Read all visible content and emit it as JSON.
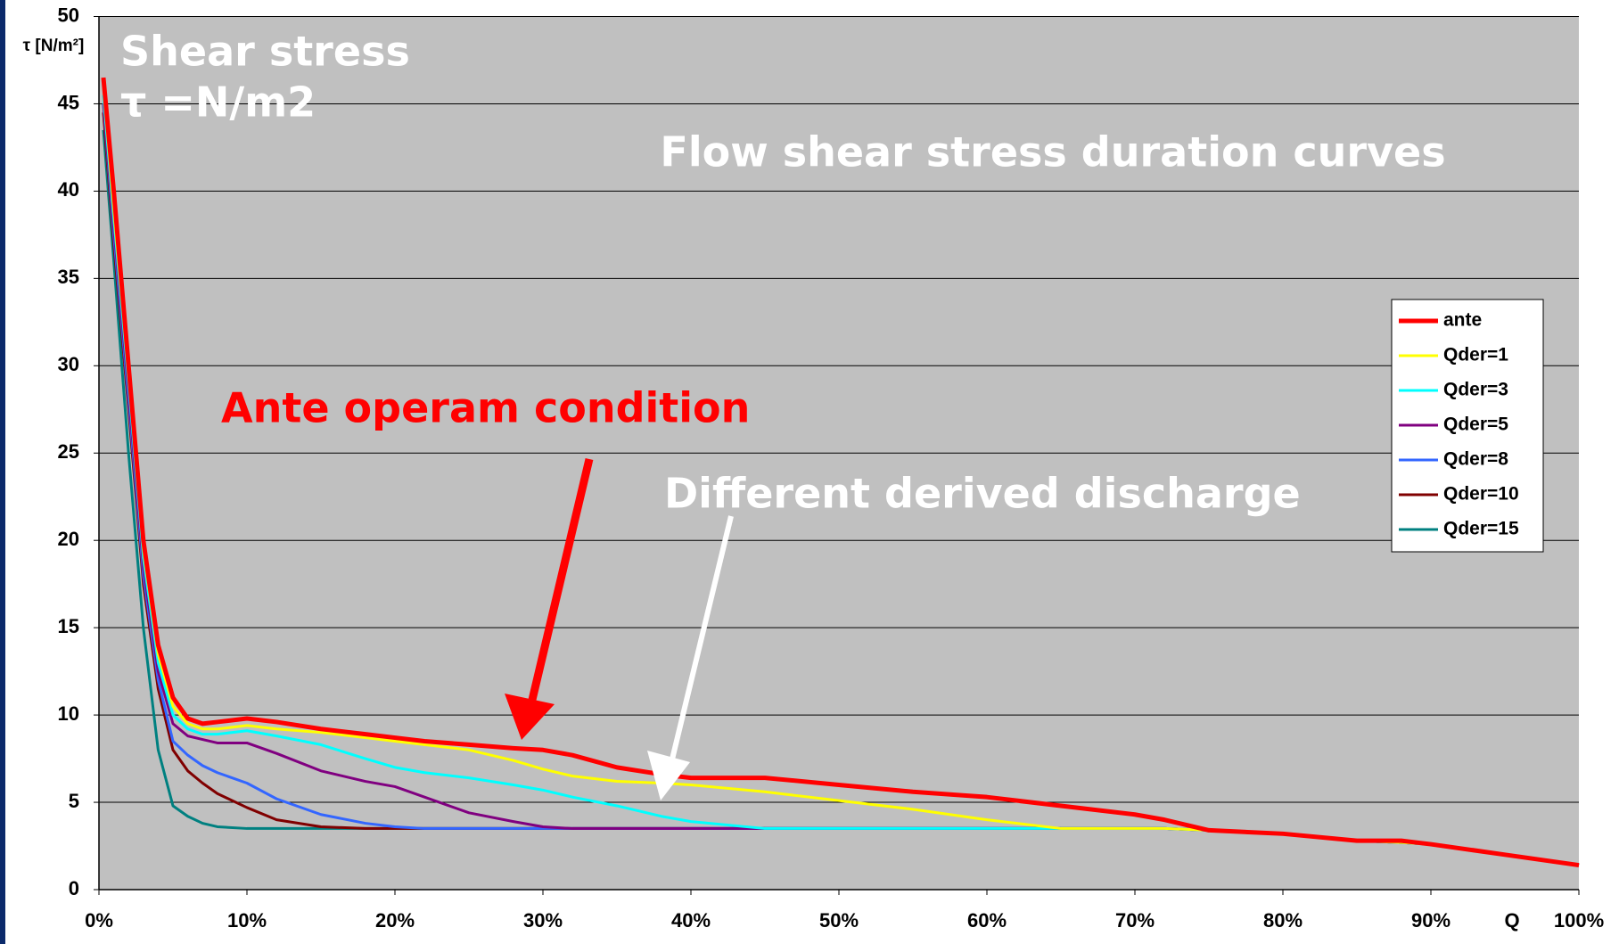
{
  "chart_data": {
    "type": "line",
    "title": "Flow shear stress duration curves",
    "y_label": "τ [N/m²]",
    "x_label": "Q",
    "annotations": [
      "Shear stress",
      "τ =N/m2",
      "Ante operam condition",
      "Different derived discharge"
    ],
    "x": [
      0.3,
      1,
      2,
      3,
      4,
      5,
      6,
      7,
      8,
      10,
      12,
      15,
      18,
      20,
      22,
      25,
      28,
      30,
      32,
      35,
      38,
      40,
      45,
      50,
      55,
      60,
      65,
      70,
      72,
      75,
      80,
      85,
      88,
      90,
      95,
      100
    ],
    "series": [
      {
        "name": "ante",
        "color": "#ff0000",
        "values": [
          46.5,
          40,
          30,
          20,
          14,
          11,
          9.8,
          9.5,
          9.6,
          9.8,
          9.6,
          9.2,
          8.9,
          8.7,
          8.5,
          8.3,
          8.1,
          8.0,
          7.7,
          7.0,
          6.6,
          6.4,
          6.4,
          6.0,
          5.6,
          5.3,
          4.8,
          4.3,
          4.0,
          3.4,
          3.2,
          2.8,
          2.8,
          2.6,
          2.0,
          1.4
        ]
      },
      {
        "name": "Qder=1",
        "color": "#ffff00",
        "values": [
          46,
          39,
          29.5,
          19.5,
          13.5,
          10.5,
          9.5,
          9.2,
          9.2,
          9.4,
          9.2,
          9.0,
          8.7,
          8.5,
          8.3,
          8.0,
          7.4,
          6.9,
          6.5,
          6.2,
          6.1,
          6.0,
          5.6,
          5.1,
          4.6,
          4.0,
          3.5,
          3.5,
          3.5,
          3.4,
          3.2,
          2.8,
          2.7,
          2.6,
          2.0,
          1.4
        ]
      },
      {
        "name": "Qder=3",
        "color": "#00ffff",
        "values": [
          45.5,
          38.5,
          29,
          19,
          13,
          10,
          9.2,
          8.9,
          8.9,
          9.1,
          8.8,
          8.3,
          7.5,
          7.0,
          6.7,
          6.4,
          6.0,
          5.7,
          5.3,
          4.8,
          4.2,
          3.9,
          3.5,
          3.5,
          3.5,
          3.5,
          3.5,
          3.5,
          3.5,
          3.4,
          3.2,
          2.8,
          2.7,
          2.6,
          2.0,
          1.4
        ]
      },
      {
        "name": "Qder=5",
        "color": "#800080",
        "values": [
          45,
          38,
          28.5,
          18.5,
          12.5,
          9.5,
          8.8,
          8.6,
          8.4,
          8.4,
          7.8,
          6.8,
          6.2,
          5.9,
          5.3,
          4.4,
          3.9,
          3.6,
          3.5,
          3.5,
          3.5,
          3.5,
          3.5,
          3.5,
          3.5,
          3.5,
          3.5,
          3.5,
          3.5,
          3.4,
          3.2,
          2.8,
          2.7,
          2.6,
          2.0,
          1.4
        ]
      },
      {
        "name": "Qder=8",
        "color": "#3366ff",
        "values": [
          45,
          37.5,
          28,
          18,
          12,
          8.5,
          7.7,
          7.1,
          6.7,
          6.1,
          5.2,
          4.3,
          3.8,
          3.6,
          3.5,
          3.5,
          3.5,
          3.5,
          3.5,
          3.5,
          3.5,
          3.5,
          3.5,
          3.5,
          3.5,
          3.5,
          3.5,
          3.5,
          3.5,
          3.4,
          3.2,
          2.8,
          2.7,
          2.6,
          2.0,
          1.4
        ]
      },
      {
        "name": "Qder=10",
        "color": "#800000",
        "values": [
          44.5,
          37,
          27.5,
          17.5,
          11.5,
          8,
          6.8,
          6.1,
          5.5,
          4.7,
          4.0,
          3.6,
          3.5,
          3.5,
          3.5,
          3.5,
          3.5,
          3.5,
          3.5,
          3.5,
          3.5,
          3.5,
          3.5,
          3.5,
          3.5,
          3.5,
          3.5,
          3.5,
          3.5,
          3.4,
          3.2,
          2.8,
          2.7,
          2.6,
          2.0,
          1.4
        ]
      },
      {
        "name": "Qder=15",
        "color": "#008080",
        "values": [
          43.5,
          36,
          25,
          15,
          8,
          4.8,
          4.2,
          3.8,
          3.6,
          3.5,
          3.5,
          3.5,
          3.5,
          3.5,
          3.5,
          3.5,
          3.5,
          3.5,
          3.5,
          3.5,
          3.5,
          3.5,
          3.5,
          3.5,
          3.5,
          3.5,
          3.5,
          3.5,
          3.5,
          3.4,
          3.2,
          2.8,
          2.7,
          2.6,
          2.0,
          1.4
        ]
      }
    ],
    "xlim": [
      0,
      100
    ],
    "xticks": [
      {
        "value": 0,
        "label": "0%"
      },
      {
        "value": 10,
        "label": "10%"
      },
      {
        "value": 20,
        "label": "20%"
      },
      {
        "value": 30,
        "label": "30%"
      },
      {
        "value": 40,
        "label": "40%"
      },
      {
        "value": 50,
        "label": "50%"
      },
      {
        "value": 60,
        "label": "60%"
      },
      {
        "value": 70,
        "label": "70%"
      },
      {
        "value": 80,
        "label": "80%"
      },
      {
        "value": 90,
        "label": "90%"
      },
      {
        "value": 100,
        "label": "100%"
      }
    ],
    "ylim": [
      0,
      50
    ],
    "yticks": [
      0,
      5,
      10,
      15,
      20,
      25,
      30,
      35,
      40,
      45,
      50
    ],
    "grid": true,
    "legend": "right"
  }
}
